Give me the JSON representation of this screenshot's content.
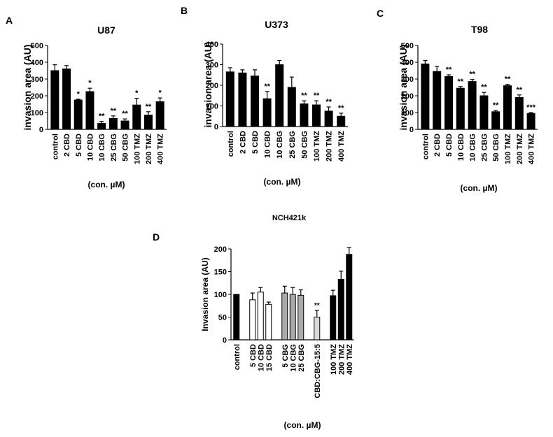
{
  "figure": {
    "xunit_label": "(con. µM)"
  },
  "chart_data": [
    {
      "panel": "A",
      "type": "bar",
      "title": "U87",
      "ylabel": "invasion area (AU)",
      "ylim": [
        0,
        500
      ],
      "yticks": [
        0,
        100,
        200,
        300,
        400,
        500
      ],
      "categories": [
        "control",
        "2 CBD",
        "5 CBD",
        "10 CBD",
        "10 CBG",
        "25 CBG",
        "50 CBG",
        "100 TMZ",
        "200 TMZ",
        "400 TMZ"
      ],
      "values": [
        350,
        360,
        175,
        225,
        35,
        65,
        50,
        145,
        85,
        165
      ],
      "errors": [
        35,
        20,
        5,
        20,
        12,
        15,
        12,
        40,
        20,
        22
      ],
      "significance": [
        "",
        "",
        "*",
        "*",
        "**",
        "**",
        "**",
        "*",
        "**",
        "*"
      ],
      "fills": [
        "#000000",
        "#000000",
        "#000000",
        "#000000",
        "#000000",
        "#000000",
        "#000000",
        "#000000",
        "#000000",
        "#000000"
      ],
      "xlabel": "(con. µM)"
    },
    {
      "panel": "B",
      "type": "bar",
      "title": "U373",
      "ylabel": "invasion area (AU)",
      "ylim": [
        0,
        400
      ],
      "yticks": [
        0,
        100,
        200,
        300,
        400
      ],
      "categories": [
        "control",
        "2 CBD",
        "5 CBD",
        "10 CBD",
        "10 CBG",
        "25 CBG",
        "50 CBG",
        "100 TMZ",
        "200 TMZ",
        "400 TMZ"
      ],
      "values": [
        265,
        260,
        245,
        135,
        300,
        190,
        110,
        105,
        75,
        50
      ],
      "errors": [
        20,
        15,
        30,
        35,
        20,
        50,
        15,
        20,
        20,
        15
      ],
      "significance": [
        "",
        "",
        "",
        "**",
        "",
        "",
        "**",
        "**",
        "**",
        "**"
      ],
      "fills": [
        "#000000",
        "#000000",
        "#000000",
        "#000000",
        "#000000",
        "#000000",
        "#000000",
        "#000000",
        "#000000",
        "#000000"
      ],
      "xlabel": "(con. µM)"
    },
    {
      "panel": "C",
      "type": "bar",
      "title": "T98",
      "ylabel": "invasion area (AU)",
      "ylim": [
        0,
        500
      ],
      "yticks": [
        0,
        100,
        200,
        300,
        400,
        500
      ],
      "categories": [
        "control",
        "2 CBD",
        "5 CBD",
        "10 CBD",
        "10 CBG",
        "25 CBG",
        "50 CBG",
        "100 TMZ",
        "200 TMZ",
        "400 TMZ"
      ],
      "values": [
        390,
        345,
        315,
        245,
        285,
        200,
        105,
        260,
        190,
        95
      ],
      "errors": [
        20,
        30,
        10,
        10,
        12,
        20,
        8,
        8,
        15,
        5
      ],
      "significance": [
        "",
        "",
        "**",
        "**",
        "**",
        "**",
        "**",
        "**",
        "**",
        "***"
      ],
      "fills": [
        "#000000",
        "#000000",
        "#000000",
        "#000000",
        "#000000",
        "#000000",
        "#000000",
        "#000000",
        "#000000",
        "#000000"
      ],
      "xlabel": "(con. µM)"
    },
    {
      "panel": "D",
      "type": "bar",
      "title": "NCH421k",
      "ylabel": "Invasion area (AU)",
      "ylim": [
        0,
        200
      ],
      "yticks": [
        0,
        50,
        100,
        150,
        200
      ],
      "categories": [
        "control",
        "",
        "5 CBD",
        "10 CBD",
        "15 CBD",
        "",
        "5 CBG",
        "10 CBG",
        "25 CBG",
        "",
        "CBD:CBG-15:5",
        "",
        "100 TMZ",
        "200 TMZ",
        "400 TMZ"
      ],
      "values": [
        100,
        null,
        88,
        105,
        78,
        null,
        103,
        100,
        98,
        null,
        50,
        null,
        97,
        133,
        188
      ],
      "errors": [
        0,
        null,
        15,
        10,
        5,
        null,
        15,
        15,
        12,
        null,
        15,
        null,
        12,
        18,
        15
      ],
      "significance": [
        "",
        "",
        "",
        "",
        "",
        "",
        "",
        "",
        "",
        "",
        "**",
        "",
        "",
        "",
        ""
      ],
      "fills": [
        "#000000",
        null,
        "#ffffff",
        "#ffffff",
        "#ffffff",
        null,
        "#aaaaaa",
        "#aaaaaa",
        "#aaaaaa",
        null,
        "#d9d9d9",
        null,
        "#000000",
        "#000000",
        "#000000"
      ],
      "xlabel": "(con. µM)"
    }
  ]
}
